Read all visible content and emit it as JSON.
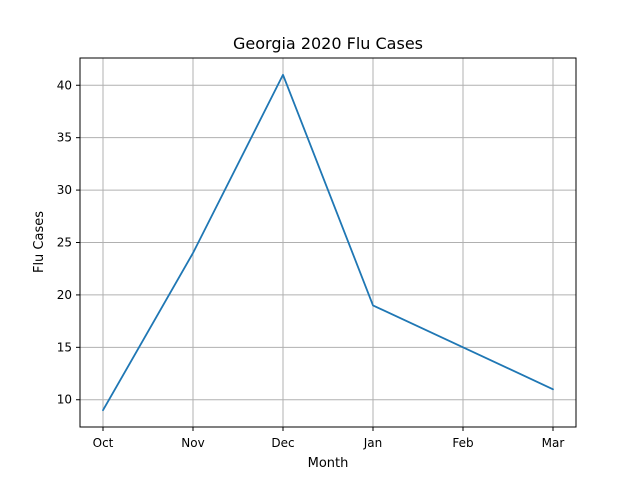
{
  "chart_data": {
    "type": "line",
    "title": "Georgia 2020 Flu Cases",
    "xlabel": "Month",
    "ylabel": "Flu Cases",
    "categories": [
      "Oct",
      "Nov",
      "Dec",
      "Jan",
      "Feb",
      "Mar"
    ],
    "series": [
      {
        "values": [
          9,
          24,
          41,
          19,
          15,
          11
        ],
        "color": "#1f77b4"
      }
    ],
    "ylim": [
      7.4,
      42.6
    ],
    "yticks": [
      10,
      15,
      20,
      25,
      30,
      35,
      40
    ],
    "grid": true
  }
}
